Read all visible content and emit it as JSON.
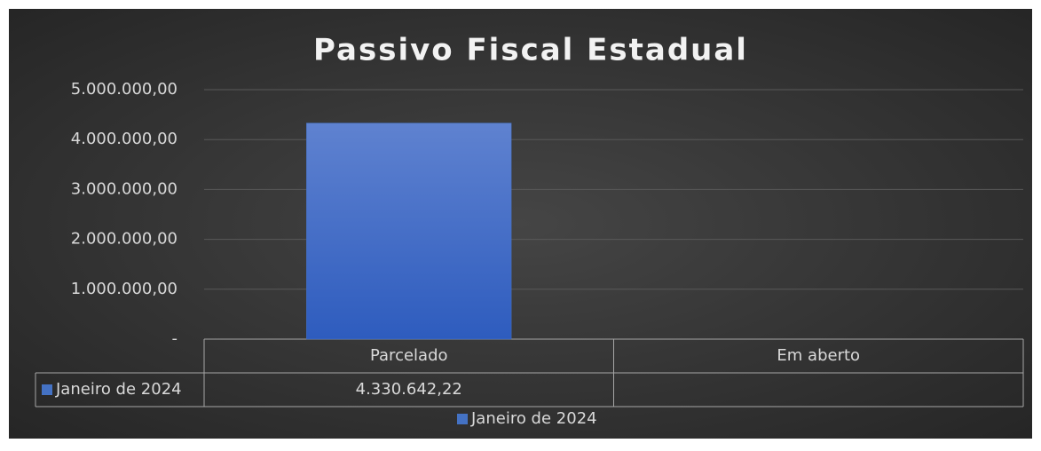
{
  "chart_data": {
    "type": "bar",
    "title": "Passivo Fiscal Estadual",
    "categories": [
      "Parcelado",
      "Em aberto"
    ],
    "series": [
      {
        "name": "Janeiro de 2024",
        "color": "#4472c4",
        "values": [
          4330642.22,
          null
        ],
        "value_labels": [
          "4.330.642,22",
          null
        ]
      }
    ],
    "ylim": [
      0,
      5000000
    ],
    "yticks": [
      {
        "value": 0,
        "label": "-"
      },
      {
        "value": 1000000,
        "label": "1.000.000,00"
      },
      {
        "value": 2000000,
        "label": "2.000.000,00"
      },
      {
        "value": 3000000,
        "label": "3.000.000,00"
      },
      {
        "value": 4000000,
        "label": "4.000.000,00"
      },
      {
        "value": 5000000,
        "label": "5.000.000,00"
      }
    ],
    "grid": true,
    "legend": "bottom"
  }
}
